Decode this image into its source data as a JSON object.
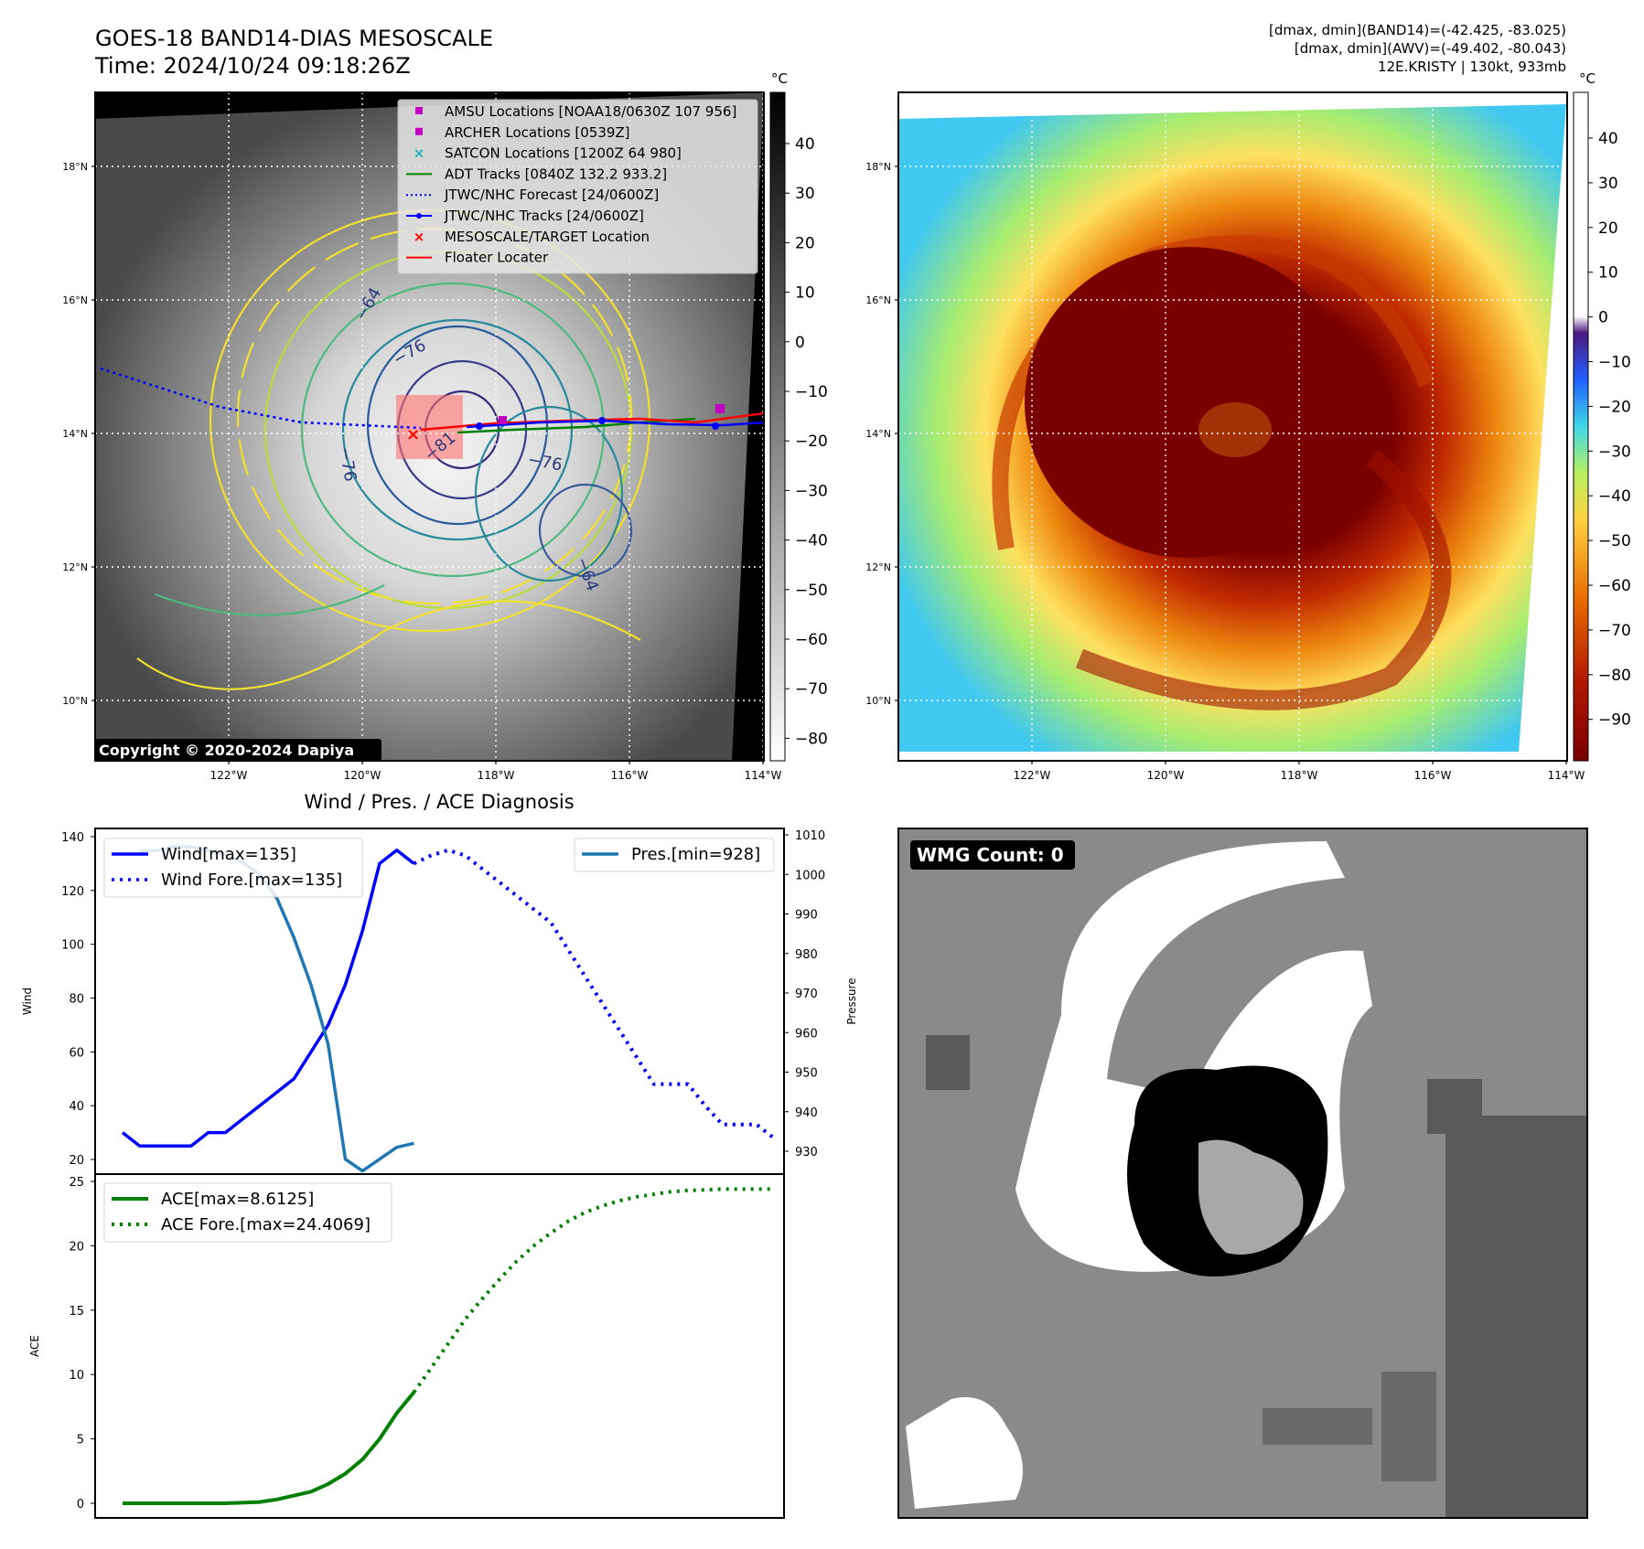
{
  "header": {
    "title": "GOES-18 BAND14-DIAS MESOSCALE",
    "time": "Time: 2024/10/24 09:18:26Z",
    "stats_band14": "[dmax, dmin](BAND14)=(-42.425, -83.025)",
    "stats_awv": "[dmax, dmin](AWV)=(-49.402, -80.043)",
    "storm": "12E.KRISTY | 130kt, 933mb"
  },
  "map_axes": {
    "lat_ticks": [
      "18°N",
      "16°N",
      "14°N",
      "12°N",
      "10°N"
    ],
    "lon_ticks": [
      "122°W",
      "120°W",
      "118°W",
      "116°W",
      "114°W"
    ]
  },
  "ir_panel": {
    "cbar_unit": "°C",
    "cbar_ticks": [
      "40",
      "30",
      "20",
      "10",
      "0",
      "−10",
      "−20",
      "−30",
      "−40",
      "−50",
      "−60",
      "−70",
      "−80"
    ],
    "copyright": "Copyright © 2020-2024 Dapiya",
    "contour_labels": [
      "−64",
      "−76",
      "−76",
      "−81",
      "−76",
      "−64"
    ],
    "legend": [
      {
        "label": "AMSU Locations [NOAA18/0630Z 107 956]",
        "color": "#c000c0",
        "marker": "square"
      },
      {
        "label": "ARCHER Locations [0539Z]",
        "color": "#c000c0",
        "marker": "square"
      },
      {
        "label": "SATCON Locations [1200Z 64 980]",
        "color": "#20b0b0",
        "marker": "x"
      },
      {
        "label": "ADT Tracks [0840Z 132.2 933.2]",
        "color": "#008000",
        "marker": "line"
      },
      {
        "label": "JTWC/NHC Forecast [24/0600Z]",
        "color": "#0000ff",
        "marker": "dotted"
      },
      {
        "label": "JTWC/NHC Tracks [24/0600Z]",
        "color": "#0000ff",
        "marker": "line-dot"
      },
      {
        "label": "MESOSCALE/TARGET Location",
        "color": "#ff0000",
        "marker": "x"
      },
      {
        "label": "Floater Locater",
        "color": "#ff0000",
        "marker": "line"
      }
    ]
  },
  "color_panel": {
    "cbar_unit": "°C",
    "cbar_ticks": [
      "40",
      "30",
      "20",
      "10",
      "0",
      "−10",
      "−20",
      "−30",
      "−40",
      "−50",
      "−60",
      "−70",
      "−80",
      "−90"
    ]
  },
  "wmg_panel": {
    "badge": "WMG Count: 0"
  },
  "chart_data": [
    {
      "type": "line",
      "title": "Wind / Pres. / ACE Diagnosis",
      "ylabel": "Wind",
      "ylabel_right": "Pressure",
      "ylim": [
        20,
        140
      ],
      "ylim_right": [
        926,
        1011
      ],
      "y_ticks": [
        "140",
        "120",
        "100",
        "80",
        "60",
        "40",
        "20"
      ],
      "y_ticks_right": [
        "1010",
        "1000",
        "990",
        "980",
        "970",
        "960",
        "950",
        "940",
        "930"
      ],
      "legend_left": [
        "Wind[max=135]",
        "Wind Fore.[max=135]"
      ],
      "legend_right": [
        "Pres.[min=928]"
      ],
      "series": [
        {
          "name": "Wind[max=135]",
          "style": "solid",
          "color": "#0000ff",
          "x": [
            0,
            1,
            2,
            3,
            4,
            5,
            6,
            7,
            8,
            9,
            10,
            11,
            12,
            13
          ],
          "values": [
            30,
            25,
            25,
            25,
            25,
            30,
            30,
            35,
            40,
            45,
            50,
            60,
            70,
            85
          ]
        },
        {
          "name": "Wind[max=135] (cont.)",
          "style": "solid",
          "color": "#0000ff",
          "x": [
            13,
            14,
            15,
            16,
            17
          ],
          "values": [
            85,
            105,
            130,
            135,
            130
          ]
        },
        {
          "name": "Wind Fore.[max=135]",
          "style": "dotted",
          "color": "#0000ff",
          "x": [
            17,
            18,
            19,
            20,
            21,
            22,
            23,
            24,
            25,
            26,
            27,
            28,
            29,
            30,
            31,
            32,
            33,
            34,
            35,
            36,
            37,
            38
          ],
          "values": [
            130,
            133,
            135,
            133,
            128,
            123,
            118,
            113,
            108,
            98,
            88,
            78,
            68,
            58,
            48,
            48,
            48,
            40,
            33,
            33,
            33,
            28
          ]
        },
        {
          "name": "Pres.[min=928]",
          "style": "solid",
          "color": "#1f77b4",
          "axis": "right",
          "x": [
            1,
            2,
            3,
            4,
            5,
            6,
            7,
            8,
            9,
            10,
            11,
            12,
            13,
            14,
            15,
            16,
            17
          ],
          "values": [
            1006,
            1006,
            1007,
            1007,
            1006,
            1005,
            1003,
            1000,
            994,
            984,
            972,
            957,
            928,
            925,
            928,
            931,
            932
          ]
        }
      ]
    },
    {
      "type": "line",
      "ylabel": "ACE",
      "ylim": [
        -1,
        25
      ],
      "y_ticks": [
        "25",
        "20",
        "15",
        "10",
        "5",
        "0"
      ],
      "legend": [
        "ACE[max=8.6125]",
        "ACE Fore.[max=24.4069]"
      ],
      "series": [
        {
          "name": "ACE[max=8.6125]",
          "style": "solid",
          "color": "#008000",
          "x": [
            0,
            2,
            4,
            6,
            8,
            9,
            10,
            11,
            12,
            13,
            14,
            15,
            16,
            17
          ],
          "values": [
            0,
            0,
            0,
            0,
            0.1,
            0.3,
            0.6,
            0.9,
            1.5,
            2.3,
            3.4,
            5.0,
            7.0,
            8.6125
          ]
        },
        {
          "name": "ACE Fore.[max=24.4069]",
          "style": "dotted",
          "color": "#008000",
          "x": [
            17,
            18,
            19,
            20,
            21,
            22,
            23,
            24,
            25,
            26,
            27,
            28,
            29,
            30,
            31,
            32,
            33,
            34,
            35,
            36,
            37,
            38
          ],
          "values": [
            8.6125,
            10.5,
            12.4,
            14.3,
            15.9,
            17.4,
            18.8,
            20.0,
            21.0,
            21.9,
            22.6,
            23.1,
            23.5,
            23.8,
            24.0,
            24.2,
            24.3,
            24.35,
            24.4,
            24.4069,
            24.4069,
            24.4069
          ]
        }
      ]
    }
  ]
}
